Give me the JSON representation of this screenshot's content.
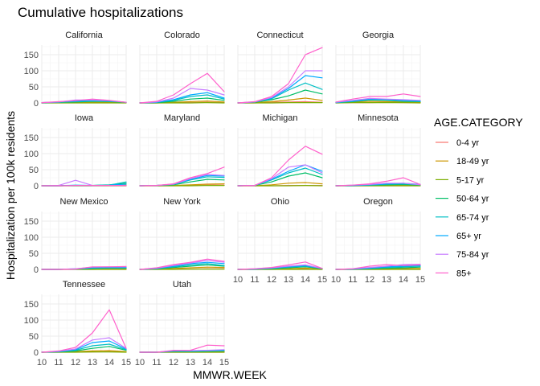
{
  "chart_data": {
    "type": "line",
    "title": "Cumulative hospitalizations",
    "xlabel": "MMWR.WEEK",
    "ylabel": "Hospitalization per 100k residents",
    "x": [
      10,
      11,
      12,
      13,
      14,
      15
    ],
    "xlim": [
      10,
      15
    ],
    "ylim": [
      0,
      180
    ],
    "yticks": [
      0,
      50,
      100,
      150
    ],
    "xticks": [
      10,
      11,
      12,
      13,
      14,
      15
    ],
    "grid": true,
    "legend": {
      "title": "AGE.CATEGORY",
      "placement": "right",
      "entries": [
        {
          "key": "0-4",
          "label": "0-4 yr",
          "color": "#F8766D"
        },
        {
          "key": "18-49",
          "label": "18-49 yr",
          "color": "#CD9600"
        },
        {
          "key": "5-17",
          "label": "5-17 yr",
          "color": "#7CAE00"
        },
        {
          "key": "50-64",
          "label": "50-64 yr",
          "color": "#00BE67"
        },
        {
          "key": "65-74",
          "label": "65-74 yr",
          "color": "#00BFC4"
        },
        {
          "key": "65+",
          "label": "65+ yr",
          "color": "#00A9FF"
        },
        {
          "key": "75-84",
          "label": "75-84 yr",
          "color": "#C77CFF"
        },
        {
          "key": "85+",
          "label": "85+",
          "color": "#FF61CC"
        }
      ]
    },
    "facets": [
      {
        "name": "California",
        "series": {
          "0-4": [
            0,
            1,
            1,
            1,
            1,
            1
          ],
          "18-49": [
            0,
            1,
            2,
            2,
            2,
            1
          ],
          "5-17": [
            0,
            0,
            0,
            0,
            0,
            0
          ],
          "50-64": [
            0,
            2,
            3,
            5,
            4,
            2
          ],
          "65-74": [
            1,
            2,
            4,
            6,
            5,
            2
          ],
          "65+": [
            1,
            3,
            6,
            8,
            6,
            2
          ],
          "75-84": [
            1,
            3,
            9,
            9,
            7,
            2
          ],
          "85+": [
            1,
            4,
            7,
            12,
            8,
            2
          ]
        }
      },
      {
        "name": "Colorado",
        "series": {
          "0-4": [
            0,
            0,
            1,
            1,
            2,
            1
          ],
          "18-49": [
            0,
            0,
            2,
            4,
            6,
            3
          ],
          "5-17": [
            0,
            0,
            0,
            0,
            1,
            0
          ],
          "50-64": [
            0,
            1,
            5,
            12,
            15,
            8
          ],
          "65-74": [
            0,
            2,
            8,
            20,
            25,
            12
          ],
          "65+": [
            0,
            2,
            10,
            25,
            32,
            15
          ],
          "75-84": [
            0,
            3,
            15,
            45,
            40,
            25
          ],
          "85+": [
            0,
            5,
            25,
            60,
            92,
            35
          ]
        }
      },
      {
        "name": "Connecticut",
        "series": {
          "0-4": [
            0,
            0,
            2,
            3,
            4,
            2
          ],
          "18-49": [
            0,
            1,
            4,
            9,
            15,
            8
          ],
          "5-17": [
            0,
            0,
            0,
            1,
            1,
            1
          ],
          "50-64": [
            0,
            2,
            10,
            22,
            40,
            28
          ],
          "65-74": [
            0,
            3,
            13,
            40,
            62,
            42
          ],
          "65+": [
            0,
            3,
            15,
            45,
            85,
            78
          ],
          "75-84": [
            0,
            3,
            17,
            50,
            100,
            100
          ],
          "85+": [
            0,
            4,
            20,
            60,
            150,
            172
          ]
        }
      },
      {
        "name": "Georgia",
        "series": {
          "0-4": [
            0,
            1,
            1,
            2,
            1,
            1
          ],
          "18-49": [
            1,
            3,
            5,
            4,
            3,
            2
          ],
          "5-17": [
            0,
            1,
            1,
            1,
            1,
            0
          ],
          "50-64": [
            1,
            4,
            9,
            8,
            5,
            4
          ],
          "65-74": [
            1,
            5,
            10,
            9,
            6,
            5
          ],
          "65+": [
            2,
            6,
            12,
            11,
            8,
            6
          ],
          "75-84": [
            2,
            8,
            14,
            12,
            10,
            8
          ],
          "85+": [
            3,
            12,
            20,
            20,
            28,
            20
          ]
        }
      },
      {
        "name": "Iowa",
        "series": {
          "0-4": [
            0,
            0,
            0,
            0,
            0,
            0
          ],
          "18-49": [
            0,
            0,
            1,
            1,
            1,
            2
          ],
          "5-17": [
            0,
            0,
            0,
            0,
            0,
            0
          ],
          "50-64": [
            0,
            0,
            1,
            1,
            3,
            8
          ],
          "65-74": [
            0,
            0,
            1,
            1,
            2,
            12
          ],
          "65+": [
            0,
            0,
            2,
            1,
            2,
            5
          ],
          "75-84": [
            0,
            1,
            17,
            1,
            1,
            1
          ],
          "85+": [
            0,
            0,
            1,
            1,
            1,
            1
          ]
        }
      },
      {
        "name": "Maryland",
        "series": {
          "0-4": [
            0,
            0,
            0,
            1,
            2,
            2
          ],
          "18-49": [
            0,
            0,
            1,
            3,
            5,
            6
          ],
          "5-17": [
            0,
            0,
            0,
            0,
            1,
            1
          ],
          "50-64": [
            0,
            1,
            3,
            12,
            20,
            18
          ],
          "65-74": [
            0,
            1,
            4,
            18,
            28,
            26
          ],
          "65+": [
            0,
            1,
            5,
            20,
            32,
            30
          ],
          "75-84": [
            0,
            1,
            5,
            22,
            35,
            32
          ],
          "85+": [
            0,
            1,
            6,
            25,
            38,
            58
          ]
        }
      },
      {
        "name": "Michigan",
        "series": {
          "0-4": [
            0,
            0,
            0,
            1,
            1,
            1
          ],
          "18-49": [
            0,
            0,
            3,
            8,
            10,
            6
          ],
          "5-17": [
            0,
            0,
            0,
            0,
            1,
            0
          ],
          "50-64": [
            0,
            1,
            12,
            30,
            40,
            25
          ],
          "65-74": [
            0,
            1,
            18,
            40,
            55,
            35
          ],
          "65+": [
            0,
            1,
            20,
            45,
            65,
            45
          ],
          "75-84": [
            0,
            1,
            22,
            58,
            65,
            40
          ],
          "85+": [
            0,
            1,
            25,
            80,
            123,
            98
          ]
        }
      },
      {
        "name": "Minnesota",
        "series": {
          "0-4": [
            0,
            0,
            0,
            0,
            0,
            0
          ],
          "18-49": [
            0,
            0,
            1,
            1,
            2,
            1
          ],
          "5-17": [
            0,
            0,
            0,
            0,
            0,
            0
          ],
          "50-64": [
            0,
            1,
            2,
            3,
            4,
            2
          ],
          "65-74": [
            0,
            1,
            2,
            5,
            6,
            3
          ],
          "65+": [
            0,
            1,
            3,
            6,
            8,
            4
          ],
          "75-84": [
            0,
            2,
            4,
            8,
            8,
            3
          ],
          "85+": [
            0,
            2,
            6,
            14,
            25,
            4
          ]
        }
      },
      {
        "name": "New Mexico",
        "series": {
          "0-4": [
            0,
            0,
            0,
            0,
            1,
            1
          ],
          "18-49": [
            0,
            0,
            1,
            2,
            3,
            3
          ],
          "5-17": [
            0,
            0,
            0,
            0,
            0,
            0
          ],
          "50-64": [
            0,
            0,
            1,
            3,
            4,
            4
          ],
          "65-74": [
            0,
            0,
            1,
            4,
            5,
            5
          ],
          "65+": [
            0,
            0,
            2,
            5,
            6,
            6
          ],
          "75-84": [
            0,
            0,
            2,
            7,
            8,
            8
          ],
          "85+": [
            0,
            0,
            1,
            8,
            8,
            9
          ]
        }
      },
      {
        "name": "New York",
        "series": {
          "0-4": [
            0,
            0,
            1,
            1,
            2,
            2
          ],
          "18-49": [
            0,
            1,
            3,
            5,
            7,
            6
          ],
          "5-17": [
            0,
            0,
            0,
            1,
            1,
            1
          ],
          "50-64": [
            0,
            2,
            6,
            10,
            14,
            10
          ],
          "65-74": [
            0,
            2,
            8,
            14,
            18,
            12
          ],
          "65+": [
            0,
            3,
            10,
            18,
            22,
            18
          ],
          "75-84": [
            0,
            4,
            12,
            20,
            28,
            22
          ],
          "85+": [
            0,
            5,
            15,
            22,
            32,
            25
          ]
        }
      },
      {
        "name": "Ohio",
        "series": {
          "0-4": [
            0,
            0,
            0,
            1,
            1,
            0
          ],
          "18-49": [
            0,
            0,
            1,
            2,
            4,
            1
          ],
          "5-17": [
            0,
            0,
            0,
            0,
            0,
            0
          ],
          "50-64": [
            0,
            1,
            2,
            5,
            8,
            2
          ],
          "65-74": [
            0,
            1,
            3,
            7,
            10,
            3
          ],
          "65+": [
            0,
            1,
            4,
            8,
            12,
            3
          ],
          "75-84": [
            0,
            2,
            5,
            10,
            14,
            3
          ],
          "85+": [
            0,
            2,
            6,
            14,
            23,
            3
          ]
        }
      },
      {
        "name": "Oregon",
        "series": {
          "0-4": [
            0,
            0,
            0,
            0,
            1,
            1
          ],
          "18-49": [
            0,
            0,
            1,
            2,
            3,
            3
          ],
          "5-17": [
            0,
            0,
            0,
            0,
            0,
            0
          ],
          "50-64": [
            0,
            1,
            2,
            4,
            5,
            7
          ],
          "65-74": [
            0,
            1,
            3,
            6,
            8,
            10
          ],
          "65+": [
            0,
            1,
            4,
            8,
            10,
            12
          ],
          "75-84": [
            0,
            2,
            6,
            10,
            15,
            16
          ],
          "85+": [
            0,
            2,
            10,
            15,
            12,
            14
          ]
        }
      },
      {
        "name": "Tennessee",
        "series": {
          "0-4": [
            0,
            0,
            1,
            1,
            2,
            1
          ],
          "18-49": [
            0,
            1,
            2,
            4,
            5,
            2
          ],
          "5-17": [
            0,
            0,
            0,
            1,
            1,
            0
          ],
          "50-64": [
            0,
            1,
            4,
            12,
            18,
            6
          ],
          "65-74": [
            0,
            2,
            6,
            20,
            25,
            8
          ],
          "65+": [
            0,
            2,
            8,
            30,
            35,
            10
          ],
          "75-84": [
            0,
            3,
            10,
            38,
            45,
            12
          ],
          "85+": [
            0,
            4,
            15,
            60,
            132,
            12
          ]
        }
      },
      {
        "name": "Utah",
        "series": {
          "0-4": [
            0,
            0,
            0,
            0,
            0,
            0
          ],
          "18-49": [
            0,
            0,
            1,
            1,
            1,
            2
          ],
          "5-17": [
            0,
            0,
            0,
            0,
            0,
            0
          ],
          "50-64": [
            0,
            0,
            2,
            2,
            3,
            4
          ],
          "65-74": [
            0,
            0,
            3,
            3,
            4,
            5
          ],
          "65+": [
            0,
            0,
            4,
            4,
            5,
            6
          ],
          "75-84": [
            0,
            0,
            6,
            5,
            6,
            8
          ],
          "85+": [
            0,
            0,
            5,
            6,
            22,
            20
          ]
        }
      }
    ]
  }
}
